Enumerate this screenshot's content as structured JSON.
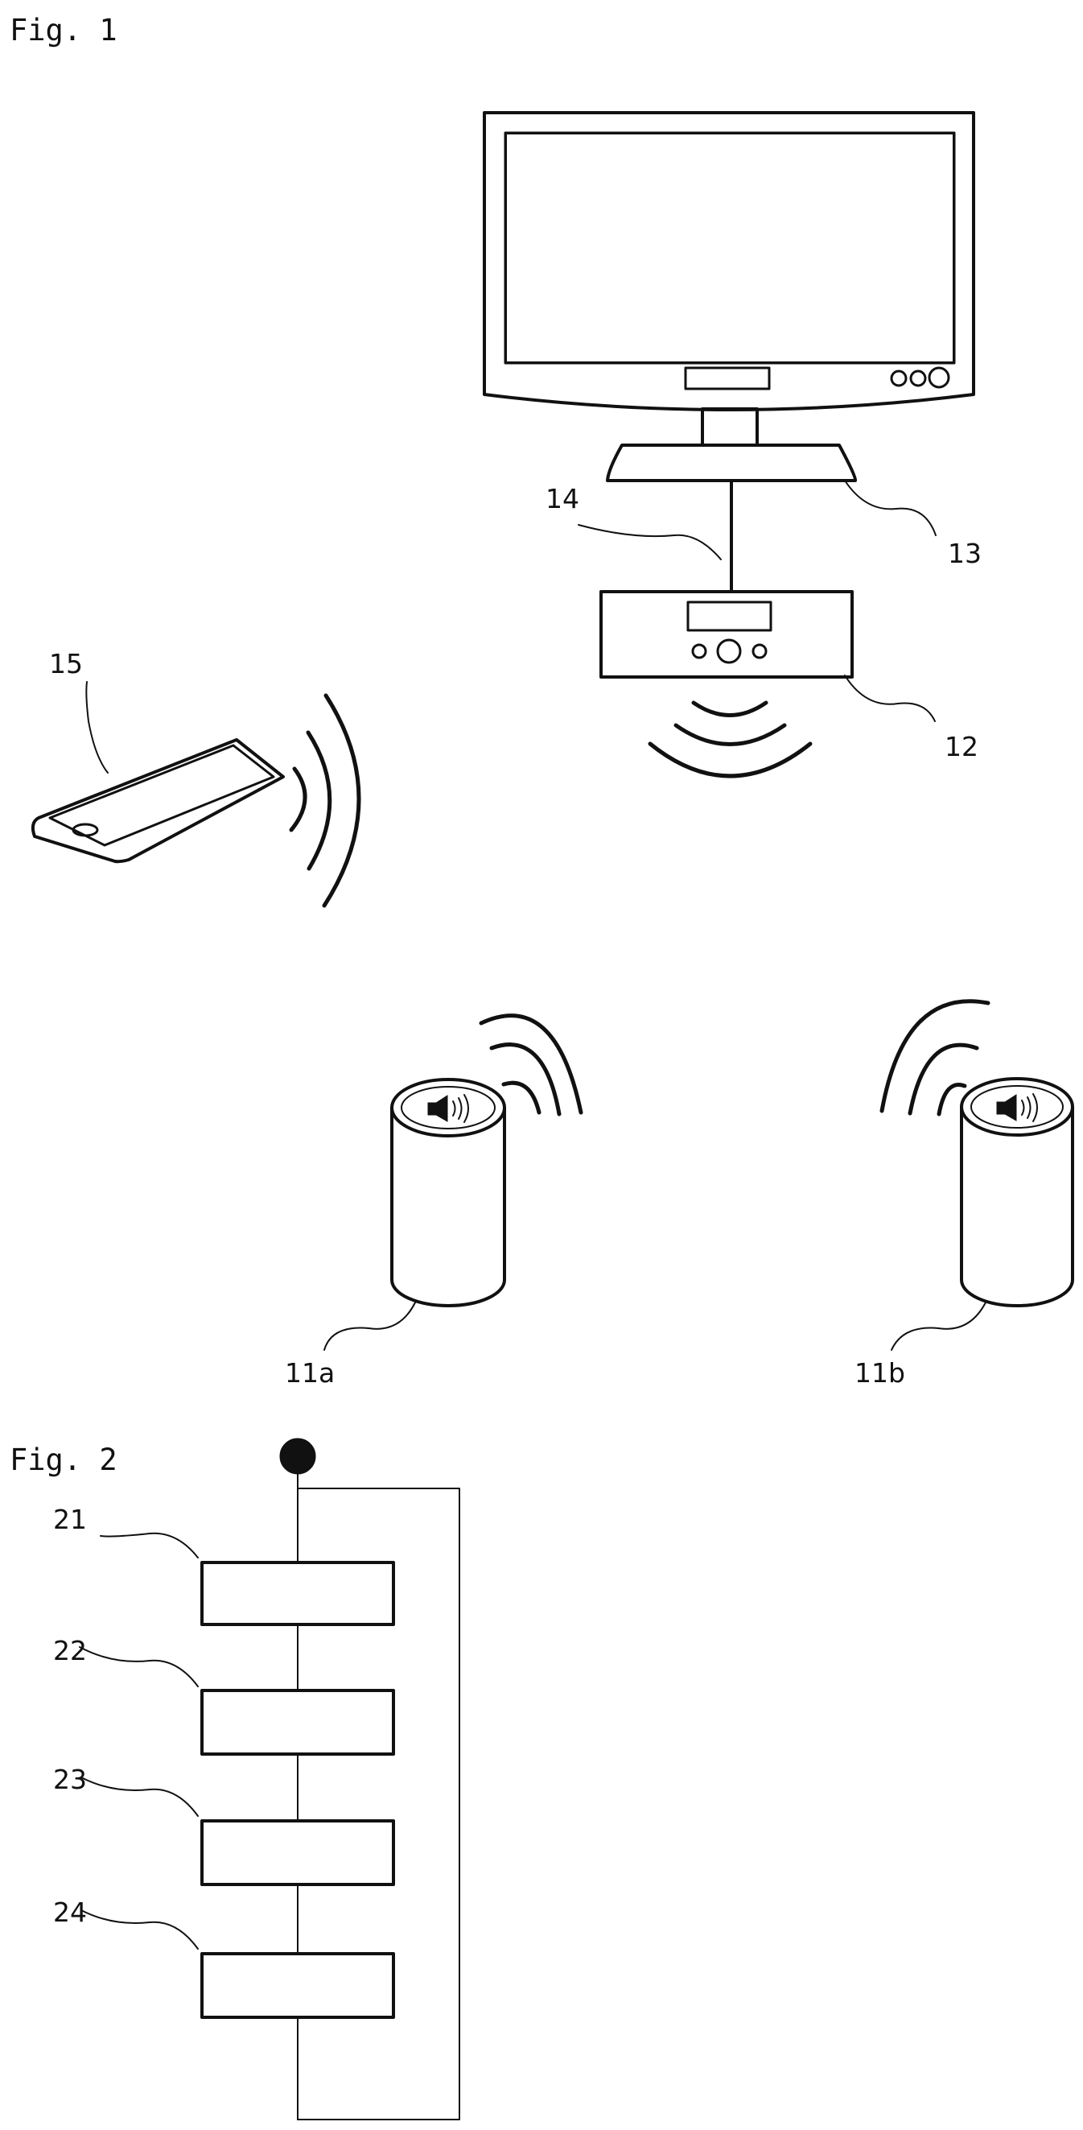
{
  "figure1": {
    "title": "Fig. 1",
    "labels": {
      "speaker_left": "11a",
      "speaker_right": "11b",
      "receiver": "12",
      "television": "13",
      "cable": "14",
      "smartphone": "15"
    }
  },
  "figure2": {
    "title": "Fig. 2",
    "steps": [
      {
        "label": "21"
      },
      {
        "label": "22"
      },
      {
        "label": "23"
      },
      {
        "label": "24"
      }
    ]
  }
}
